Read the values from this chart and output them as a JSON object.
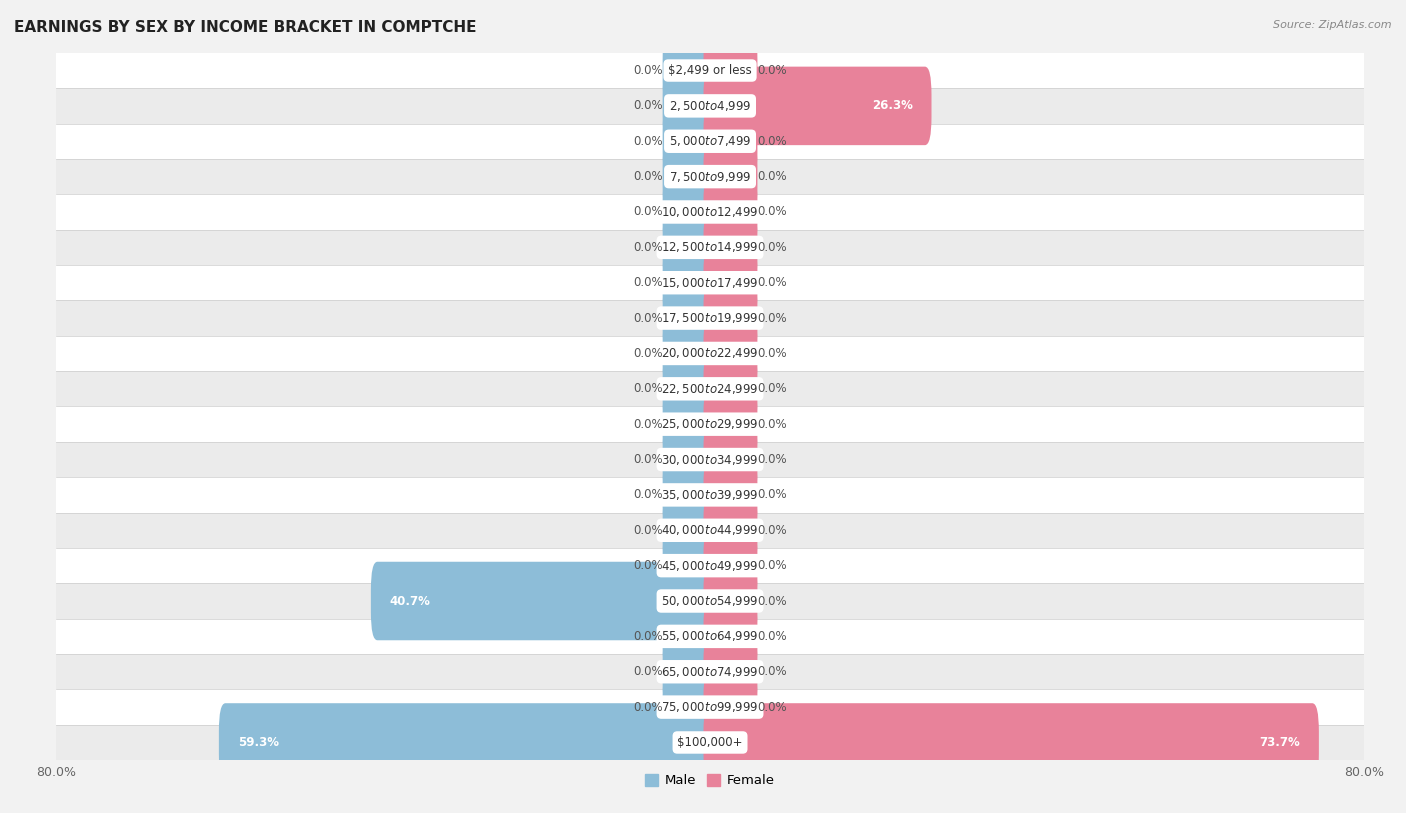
{
  "title": "EARNINGS BY SEX BY INCOME BRACKET IN COMPTCHE",
  "source": "Source: ZipAtlas.com",
  "categories": [
    "$2,499 or less",
    "$2,500 to $4,999",
    "$5,000 to $7,499",
    "$7,500 to $9,999",
    "$10,000 to $12,499",
    "$12,500 to $14,999",
    "$15,000 to $17,499",
    "$17,500 to $19,999",
    "$20,000 to $22,499",
    "$22,500 to $24,999",
    "$25,000 to $29,999",
    "$30,000 to $34,999",
    "$35,000 to $39,999",
    "$40,000 to $44,999",
    "$45,000 to $49,999",
    "$50,000 to $54,999",
    "$55,000 to $64,999",
    "$65,000 to $74,999",
    "$75,000 to $99,999",
    "$100,000+"
  ],
  "male_values": [
    0.0,
    0.0,
    0.0,
    0.0,
    0.0,
    0.0,
    0.0,
    0.0,
    0.0,
    0.0,
    0.0,
    0.0,
    0.0,
    0.0,
    0.0,
    40.7,
    0.0,
    0.0,
    0.0,
    59.3
  ],
  "female_values": [
    0.0,
    26.3,
    0.0,
    0.0,
    0.0,
    0.0,
    0.0,
    0.0,
    0.0,
    0.0,
    0.0,
    0.0,
    0.0,
    0.0,
    0.0,
    0.0,
    0.0,
    0.0,
    0.0,
    73.7
  ],
  "male_color": "#8dbdd8",
  "female_color": "#e8829a",
  "male_stub_color": "#a8cfe0",
  "female_stub_color": "#f0a0b0",
  "xlim": 80.0,
  "stub_size": 5.0,
  "bar_height": 0.62,
  "row_colors": [
    "#ffffff",
    "#ebebeb"
  ],
  "label_fontsize": 8.5,
  "val_fontsize": 8.5,
  "title_fontsize": 11,
  "source_fontsize": 8
}
